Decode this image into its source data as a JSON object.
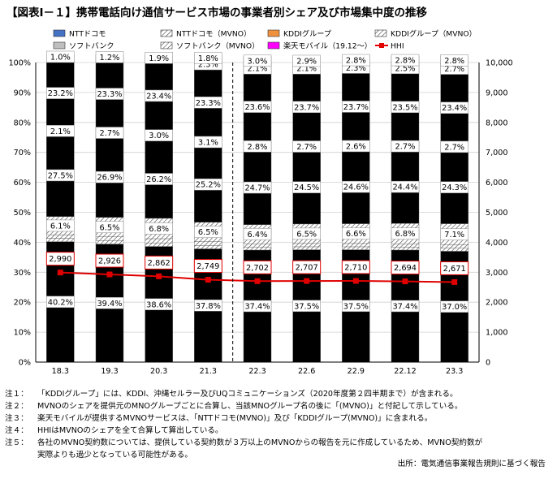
{
  "title": "【図表Ⅰ－１】携帯電話向け通信サービス市場の事業者別シェア及び市場集中度の推移",
  "chart_data": {
    "type": "bar",
    "stacked": true,
    "categories": [
      "18.3",
      "19.3",
      "20.3",
      "21.3",
      "22.3",
      "22.6",
      "22.9",
      "22.12",
      "23.3"
    ],
    "left_axis": {
      "ylim": [
        0,
        100
      ],
      "ticks": [
        "0%",
        "10%",
        "20%",
        "30%",
        "40%",
        "50%",
        "60%",
        "70%",
        "80%",
        "90%",
        "100%"
      ]
    },
    "right_axis": {
      "ylim": [
        0,
        10000
      ],
      "ticks": [
        "0",
        "1,000",
        "2,000",
        "3,000",
        "4,000",
        "5,000",
        "6,000",
        "7,000",
        "8,000",
        "9,000",
        "10,000"
      ]
    },
    "series": [
      {
        "name": "NTTドコモ",
        "color": "#4472c4",
        "pattern": "solid",
        "values": [
          40.2,
          39.4,
          38.6,
          37.8,
          37.4,
          37.5,
          37.5,
          37.4,
          37.0
        ],
        "labels": [
          "40.2%",
          "39.4%",
          "38.6%",
          "37.8%",
          "37.4%",
          "37.5%",
          "37.5%",
          "37.4%",
          "37.0%"
        ]
      },
      {
        "name": "NTTドコモ（MVNO）",
        "color": "#4472c4",
        "pattern": "hatch",
        "values": [
          1.1,
          1.2,
          1.2,
          1.1,
          1.0,
          1.0,
          1.0,
          1.0,
          1.0
        ],
        "labels": []
      },
      {
        "name": "KDDIグループ（MVNO）",
        "color": "#f0913d",
        "pattern": "hatch",
        "values": [
          1.2,
          1.2,
          1.4,
          1.3,
          1.1,
          1.1,
          1.1,
          1.1,
          1.1
        ],
        "labels": []
      },
      {
        "name": "ソフトバンク（MVNO）",
        "color": "#a6a6a6",
        "pattern": "hatch",
        "values": [
          6.1,
          6.5,
          6.8,
          6.5,
          6.4,
          6.5,
          6.6,
          6.8,
          7.1
        ],
        "labels": [
          "6.1%",
          "6.5%",
          "6.8%",
          "6.5%",
          "6.4%",
          "6.5%",
          "6.6%",
          "6.8%",
          "7.1%"
        ]
      },
      {
        "name": "KDDIグループ",
        "color": "#f0913d",
        "pattern": "solid",
        "values": [
          27.5,
          26.9,
          26.2,
          25.2,
          24.7,
          24.5,
          24.6,
          24.4,
          24.3
        ],
        "labels": [
          "27.5%",
          "26.9%",
          "26.2%",
          "25.2%",
          "24.7%",
          "24.5%",
          "24.6%",
          "24.4%",
          "24.3%"
        ]
      },
      {
        "name": "KDDIグループ（MVNO）",
        "color": "#f0913d",
        "pattern": "hatch",
        "values": [
          2.1,
          2.7,
          3.0,
          3.1,
          2.8,
          2.7,
          2.6,
          2.7,
          2.7
        ],
        "labels": [
          "2.1%",
          "2.7%",
          "3.0%",
          "3.1%",
          "2.8%",
          "2.7%",
          "2.6%",
          "2.7%",
          "2.7%"
        ]
      },
      {
        "name": "ソフトバンク",
        "color": "#bfbfbf",
        "pattern": "solid",
        "values": [
          23.2,
          23.3,
          23.4,
          23.3,
          23.6,
          23.7,
          23.7,
          23.5,
          23.4
        ],
        "labels": [
          "23.2%",
          "23.3%",
          "23.4%",
          "23.3%",
          "23.6%",
          "23.7%",
          "23.7%",
          "23.5%",
          "23.4%"
        ]
      },
      {
        "name": "ソフトバンク（MVNO）",
        "color": "#ffffff",
        "pattern": "hatch",
        "values": [
          1.0,
          1.2,
          1.9,
          2.3,
          2.1,
          2.1,
          2.3,
          2.5,
          2.7
        ],
        "labels": [
          "1.0%",
          "1.2%",
          "1.9%",
          "2.3%",
          "2.1%",
          "2.1%",
          "2.3%",
          "2.5%",
          "2.7%"
        ]
      },
      {
        "name": "楽天モバイル（19.12～）",
        "color": "#ff00ff",
        "pattern": "solid",
        "values": [
          0,
          0,
          0,
          1.8,
          3.0,
          2.9,
          2.8,
          2.8,
          2.8
        ],
        "labels": [
          "",
          "",
          "",
          "1.8%",
          "3.0%",
          "2.9%",
          "2.8%",
          "2.8%",
          "2.8%"
        ]
      }
    ],
    "hhi": {
      "name": "HHI",
      "color": "#e00000",
      "values": [
        2990,
        2926,
        2862,
        2749,
        2702,
        2707,
        2710,
        2694,
        2671
      ],
      "labels": [
        "2,990",
        "2,926",
        "2,862",
        "2,749",
        "2,702",
        "2,707",
        "2,710",
        "2,694",
        "2,671"
      ]
    },
    "legend": [
      {
        "name": "NTTドコモ",
        "type": "box",
        "fill": "#4472c4",
        "pattern": "solid"
      },
      {
        "name": "NTTドコモ（MVNO）",
        "type": "box",
        "fill": "#4472c4",
        "pattern": "hatch"
      },
      {
        "name": "KDDIグループ",
        "type": "box",
        "fill": "#f0913d",
        "pattern": "solid"
      },
      {
        "name": "KDDIグループ（MVNO）",
        "type": "box",
        "fill": "#f0913d",
        "pattern": "hatch"
      },
      {
        "name": "ソフトバンク",
        "type": "box",
        "fill": "#bfbfbf",
        "pattern": "solid"
      },
      {
        "name": "ソフトバンク（MVNO）",
        "type": "box",
        "fill": "#ffffff",
        "pattern": "hatch"
      },
      {
        "name": "楽天モバイル（19.12～）",
        "type": "box",
        "fill": "#ff00ff",
        "pattern": "solid"
      },
      {
        "name": "HHI",
        "type": "line",
        "fill": "#e00000",
        "pattern": "solid"
      }
    ],
    "legend_position": "top",
    "divider_after_category": "21.3"
  },
  "notes": [
    {
      "label": "注１：",
      "text": "「KDDIグループ」には、KDDI、沖縄セルラー及びUQコミュニケーションズ（2020年度第２四半期まで）が含まれる。"
    },
    {
      "label": "注２：",
      "text": "MVNOのシェアを提供元のMNOグループごとに合算し、当該MNOグループ名の後に「(MVNO)」と付記して示している。"
    },
    {
      "label": "注３：",
      "text": "楽天モバイルが提供するMVNOサービスは、「NTTドコモ(MVNO)」及び「KDDIグループ(MVNO)」に含まれる。"
    },
    {
      "label": "注４：",
      "text": "HHIはMVNOのシェアを全て合算して算出している。"
    },
    {
      "label": "注５：",
      "text": "各社のMVNO契約数については、提供している契約数が３万以上のMVNOからの報告を元に作成しているため、MVNO契約数が",
      "cont": "実際よりも過少となっている可能性がある。"
    }
  ],
  "source": "出所：電気通信事業報告規則に基づく報告"
}
